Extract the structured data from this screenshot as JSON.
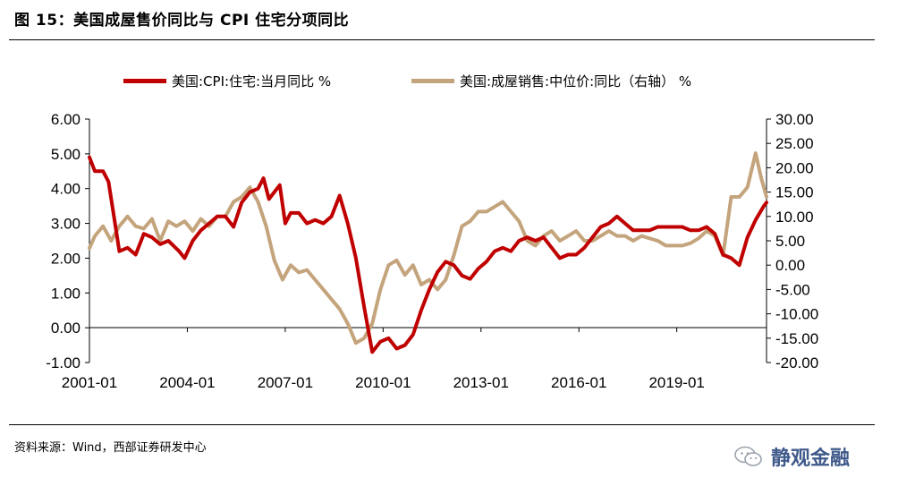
{
  "figure": {
    "title": "图 15：美国成屋售价同比与 CPI 住宅分项同比",
    "source": "资料来源：Wind，西部证券研发中心",
    "watermark": "静观金融"
  },
  "colors": {
    "series_cpi": "#c00000",
    "series_price": "#c4a47c"
  },
  "chart_data": {
    "type": "line",
    "legend_position": "top",
    "grid": false,
    "x_ticks": [
      "2001-01",
      "2004-01",
      "2007-01",
      "2010-01",
      "2013-01",
      "2016-01",
      "2019-01"
    ],
    "x_range": [
      "2001-01",
      "2021-10"
    ],
    "y_left": {
      "ticks": [
        "6.00",
        "5.00",
        "4.00",
        "3.00",
        "2.00",
        "1.00",
        "0.00",
        "-1.00"
      ],
      "range": [
        -1,
        6
      ]
    },
    "y_right": {
      "ticks": [
        "30.00",
        "25.00",
        "20.00",
        "15.00",
        "10.00",
        "5.00",
        "0.00",
        "-5.00",
        "-10.00",
        "-15.00",
        "-20.00"
      ],
      "range": [
        -20,
        30
      ]
    },
    "series": [
      {
        "name": "美国:CPI:住宅:当月同比 %",
        "axis": "left",
        "points": [
          [
            "2001-01",
            4.9
          ],
          [
            "2001-03",
            4.5
          ],
          [
            "2001-06",
            4.5
          ],
          [
            "2001-08",
            4.2
          ],
          [
            "2001-10",
            3.2
          ],
          [
            "2001-12",
            2.2
          ],
          [
            "2002-03",
            2.3
          ],
          [
            "2002-06",
            2.1
          ],
          [
            "2002-09",
            2.7
          ],
          [
            "2002-12",
            2.6
          ],
          [
            "2003-03",
            2.4
          ],
          [
            "2003-06",
            2.5
          ],
          [
            "2003-10",
            2.2
          ],
          [
            "2003-12",
            2.0
          ],
          [
            "2004-03",
            2.5
          ],
          [
            "2004-06",
            2.8
          ],
          [
            "2004-09",
            3.0
          ],
          [
            "2004-12",
            3.2
          ],
          [
            "2005-03",
            3.2
          ],
          [
            "2005-06",
            2.9
          ],
          [
            "2005-09",
            3.6
          ],
          [
            "2005-12",
            3.9
          ],
          [
            "2006-03",
            4.0
          ],
          [
            "2006-05",
            4.3
          ],
          [
            "2006-07",
            3.7
          ],
          [
            "2006-09",
            3.9
          ],
          [
            "2006-11",
            4.1
          ],
          [
            "2007-01",
            3.0
          ],
          [
            "2007-03",
            3.3
          ],
          [
            "2007-06",
            3.3
          ],
          [
            "2007-09",
            3.0
          ],
          [
            "2007-12",
            3.1
          ],
          [
            "2008-03",
            3.0
          ],
          [
            "2008-06",
            3.2
          ],
          [
            "2008-09",
            3.8
          ],
          [
            "2008-12",
            3.0
          ],
          [
            "2009-03",
            2.0
          ],
          [
            "2009-06",
            0.6
          ],
          [
            "2009-09",
            -0.7
          ],
          [
            "2009-12",
            -0.4
          ],
          [
            "2010-03",
            -0.3
          ],
          [
            "2010-06",
            -0.6
          ],
          [
            "2010-09",
            -0.5
          ],
          [
            "2010-12",
            -0.2
          ],
          [
            "2011-03",
            0.5
          ],
          [
            "2011-06",
            1.1
          ],
          [
            "2011-09",
            1.6
          ],
          [
            "2011-12",
            1.9
          ],
          [
            "2012-03",
            1.8
          ],
          [
            "2012-06",
            1.5
          ],
          [
            "2012-09",
            1.4
          ],
          [
            "2012-12",
            1.7
          ],
          [
            "2013-03",
            1.9
          ],
          [
            "2013-06",
            2.2
          ],
          [
            "2013-09",
            2.3
          ],
          [
            "2013-12",
            2.2
          ],
          [
            "2014-03",
            2.5
          ],
          [
            "2014-06",
            2.6
          ],
          [
            "2014-09",
            2.5
          ],
          [
            "2014-12",
            2.6
          ],
          [
            "2015-03",
            2.3
          ],
          [
            "2015-06",
            2.0
          ],
          [
            "2015-09",
            2.1
          ],
          [
            "2015-12",
            2.1
          ],
          [
            "2016-03",
            2.3
          ],
          [
            "2016-06",
            2.6
          ],
          [
            "2016-09",
            2.9
          ],
          [
            "2016-12",
            3.0
          ],
          [
            "2017-03",
            3.2
          ],
          [
            "2017-06",
            3.0
          ],
          [
            "2017-09",
            2.8
          ],
          [
            "2017-12",
            2.8
          ],
          [
            "2018-03",
            2.8
          ],
          [
            "2018-06",
            2.9
          ],
          [
            "2018-09",
            2.9
          ],
          [
            "2018-12",
            2.9
          ],
          [
            "2019-03",
            2.9
          ],
          [
            "2019-06",
            2.8
          ],
          [
            "2019-09",
            2.8
          ],
          [
            "2019-12",
            2.9
          ],
          [
            "2020-03",
            2.7
          ],
          [
            "2020-06",
            2.1
          ],
          [
            "2020-09",
            2.0
          ],
          [
            "2020-12",
            1.8
          ],
          [
            "2021-03",
            2.6
          ],
          [
            "2021-06",
            3.1
          ],
          [
            "2021-09",
            3.5
          ],
          [
            "2021-10",
            3.6
          ]
        ]
      },
      {
        "name": "美国:成屋销售:中位价:同比（右轴） %",
        "axis": "right",
        "points": [
          [
            "2001-01",
            3.5
          ],
          [
            "2001-03",
            6.0
          ],
          [
            "2001-06",
            8.0
          ],
          [
            "2001-09",
            5.0
          ],
          [
            "2001-12",
            8.0
          ],
          [
            "2002-03",
            10.0
          ],
          [
            "2002-06",
            8.0
          ],
          [
            "2002-09",
            7.5
          ],
          [
            "2002-12",
            9.5
          ],
          [
            "2003-03",
            5.0
          ],
          [
            "2003-06",
            9.0
          ],
          [
            "2003-09",
            8.0
          ],
          [
            "2003-12",
            9.0
          ],
          [
            "2004-03",
            7.0
          ],
          [
            "2004-06",
            9.5
          ],
          [
            "2004-09",
            8.0
          ],
          [
            "2004-12",
            10.0
          ],
          [
            "2005-03",
            10.0
          ],
          [
            "2005-06",
            13.0
          ],
          [
            "2005-09",
            14.0
          ],
          [
            "2005-12",
            16.0
          ],
          [
            "2006-03",
            13.0
          ],
          [
            "2006-06",
            8.0
          ],
          [
            "2006-09",
            1.0
          ],
          [
            "2006-12",
            -3.0
          ],
          [
            "2007-03",
            0.0
          ],
          [
            "2007-06",
            -1.5
          ],
          [
            "2007-09",
            -1.0
          ],
          [
            "2007-12",
            -3.0
          ],
          [
            "2008-03",
            -5.0
          ],
          [
            "2008-06",
            -7.0
          ],
          [
            "2008-09",
            -9.0
          ],
          [
            "2008-12",
            -12.0
          ],
          [
            "2009-03",
            -16.0
          ],
          [
            "2009-06",
            -15.0
          ],
          [
            "2009-09",
            -12.0
          ],
          [
            "2009-12",
            -5.0
          ],
          [
            "2010-03",
            0.0
          ],
          [
            "2010-06",
            1.0
          ],
          [
            "2010-09",
            -2.0
          ],
          [
            "2010-12",
            0.0
          ],
          [
            "2011-03",
            -4.0
          ],
          [
            "2011-06",
            -3.0
          ],
          [
            "2011-09",
            -5.0
          ],
          [
            "2011-12",
            -3.0
          ],
          [
            "2012-03",
            2.0
          ],
          [
            "2012-06",
            8.0
          ],
          [
            "2012-09",
            9.0
          ],
          [
            "2012-12",
            11.0
          ],
          [
            "2013-03",
            11.0
          ],
          [
            "2013-06",
            12.0
          ],
          [
            "2013-09",
            13.0
          ],
          [
            "2013-12",
            11.0
          ],
          [
            "2014-03",
            9.0
          ],
          [
            "2014-06",
            5.0
          ],
          [
            "2014-09",
            4.0
          ],
          [
            "2014-12",
            6.0
          ],
          [
            "2015-03",
            7.0
          ],
          [
            "2015-06",
            5.0
          ],
          [
            "2015-09",
            6.0
          ],
          [
            "2015-12",
            7.0
          ],
          [
            "2016-03",
            5.0
          ],
          [
            "2016-06",
            5.0
          ],
          [
            "2016-09",
            6.0
          ],
          [
            "2016-12",
            7.0
          ],
          [
            "2017-03",
            6.0
          ],
          [
            "2017-06",
            6.0
          ],
          [
            "2017-09",
            5.0
          ],
          [
            "2017-12",
            6.0
          ],
          [
            "2018-03",
            5.5
          ],
          [
            "2018-06",
            5.0
          ],
          [
            "2018-09",
            4.0
          ],
          [
            "2018-12",
            4.0
          ],
          [
            "2019-03",
            4.0
          ],
          [
            "2019-06",
            4.5
          ],
          [
            "2019-09",
            5.5
          ],
          [
            "2019-12",
            7.0
          ],
          [
            "2020-03",
            6.0
          ],
          [
            "2020-06",
            2.0
          ],
          [
            "2020-09",
            14.0
          ],
          [
            "2020-12",
            14.0
          ],
          [
            "2021-03",
            16.0
          ],
          [
            "2021-06",
            23.0
          ],
          [
            "2021-08",
            18.0
          ],
          [
            "2021-10",
            14.0
          ]
        ]
      }
    ]
  }
}
